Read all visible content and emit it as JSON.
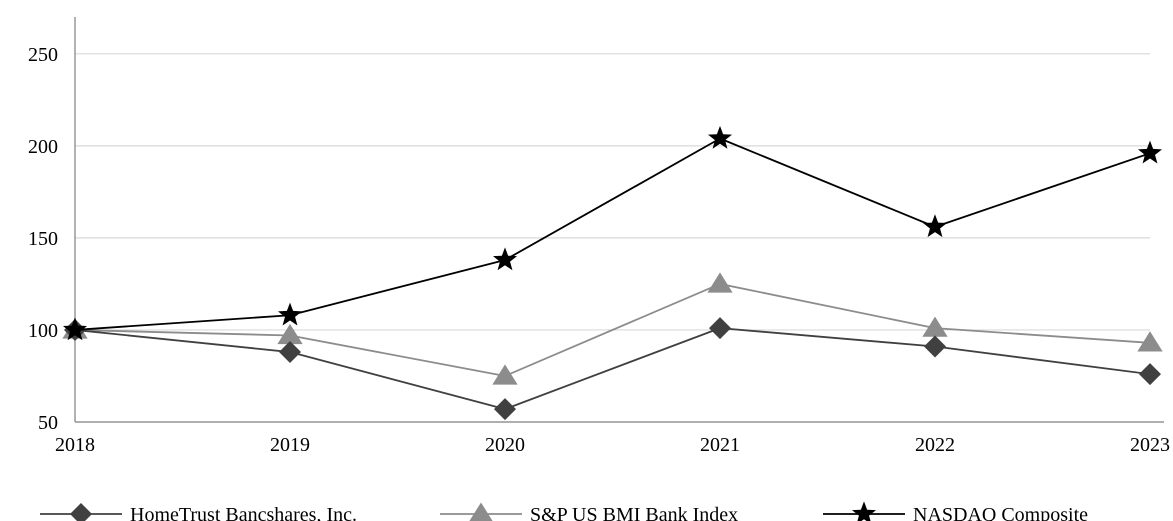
{
  "chart_data": {
    "type": "line",
    "title": "",
    "xlabel": "",
    "ylabel": "",
    "categories": [
      "2018",
      "2019",
      "2020",
      "2021",
      "2022",
      "2023"
    ],
    "ylim": [
      50,
      270
    ],
    "yticks": [
      50,
      100,
      150,
      200,
      250
    ],
    "ytick_labels": [
      "50",
      "100",
      "150",
      "200",
      "250"
    ],
    "grid": "horizontal",
    "legend_position": "bottom",
    "series": [
      {
        "name": "HomeTrust Bancshares, Inc.",
        "values": [
          100,
          88,
          57,
          101,
          91,
          76
        ],
        "color": "#404040",
        "marker": "diamond"
      },
      {
        "name": "S&P US BMI Bank Index",
        "values": [
          100,
          97,
          75,
          125,
          101,
          93
        ],
        "color": "#8c8c8c",
        "marker": "triangle"
      },
      {
        "name": "NASDAQ Composite",
        "values": [
          100,
          108,
          138,
          204,
          156,
          196
        ],
        "color": "#000000",
        "marker": "star"
      }
    ]
  }
}
